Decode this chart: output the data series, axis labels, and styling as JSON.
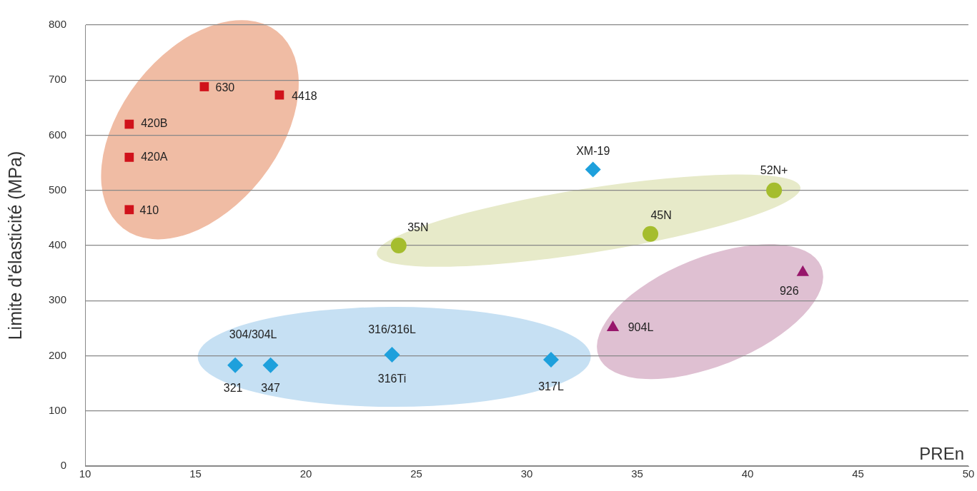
{
  "chart_data": {
    "type": "scatter",
    "xlabel": "PREn",
    "ylabel": "Limite d'élasticité (MPa)",
    "xlim": [
      10,
      50
    ],
    "xticks": [
      10,
      15,
      20,
      25,
      30,
      35,
      40,
      45,
      50
    ],
    "ylim": [
      0,
      800
    ],
    "yticks": [
      0,
      100,
      200,
      300,
      400,
      500,
      600,
      700,
      800
    ],
    "grid": "y",
    "legend": false,
    "series": [
      {
        "color": "#d0121b",
        "marker": "square",
        "x": [
          12,
          12,
          12,
          15.4,
          18.8
        ],
        "values": [
          465,
          560,
          620,
          688,
          673
        ]
      },
      {
        "color": "#1ea0dc",
        "marker": "diamond",
        "x": [
          16.8,
          18.4,
          23.9,
          31.1,
          33.0
        ],
        "values": [
          183,
          183,
          202,
          193,
          538
        ]
      },
      {
        "color": "#a5bd2e",
        "marker": "circle",
        "x": [
          24.2,
          35.6,
          41.2
        ],
        "values": [
          400,
          421,
          500
        ]
      },
      {
        "color": "#97166b",
        "marker": "triangle",
        "x": [
          33.9,
          42.5
        ],
        "values": [
          251,
          351
        ]
      }
    ],
    "annotations": [
      {
        "text": "410",
        "x": 12,
        "y": 465
      },
      {
        "text": "420A",
        "x": 12,
        "y": 560
      },
      {
        "text": "420B",
        "x": 12,
        "y": 620
      },
      {
        "text": "630",
        "x": 15.4,
        "y": 688
      },
      {
        "text": "4418",
        "x": 18.8,
        "y": 673
      },
      {
        "text": "304/304L",
        "x": 16.8,
        "y": 183
      },
      {
        "text": "321",
        "x": 16.8,
        "y": 183
      },
      {
        "text": "347",
        "x": 18.4,
        "y": 183
      },
      {
        "text": "316/316L",
        "x": 23.9,
        "y": 202
      },
      {
        "text": "316Ti",
        "x": 23.9,
        "y": 202
      },
      {
        "text": "317L",
        "x": 31.1,
        "y": 193
      },
      {
        "text": "XM-19",
        "x": 33.0,
        "y": 538
      },
      {
        "text": "35N",
        "x": 24.2,
        "y": 400
      },
      {
        "text": "45N",
        "x": 35.6,
        "y": 421
      },
      {
        "text": "52N+",
        "x": 41.2,
        "y": 500
      },
      {
        "text": "904L",
        "x": 33.9,
        "y": 251
      },
      {
        "text": "926",
        "x": 42.5,
        "y": 351
      }
    ]
  }
}
